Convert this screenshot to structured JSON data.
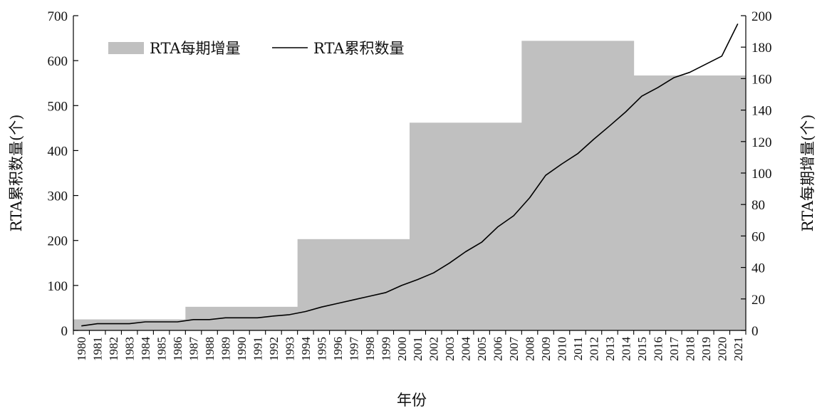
{
  "chart_data": {
    "type": "bar",
    "title": "",
    "xlabel": "年份",
    "ylabel_left": "RTA累积数量(个)",
    "ylabel_right": "RTA每期增量(个)",
    "ylim_left": [
      0,
      700
    ],
    "yticks_left": [
      0,
      100,
      200,
      300,
      400,
      500,
      600,
      700
    ],
    "ylim_right": [
      0,
      200
    ],
    "yticks_right": [
      0,
      20,
      40,
      60,
      80,
      100,
      120,
      140,
      160,
      180,
      200
    ],
    "categories": [
      "1980",
      "1981",
      "1982",
      "1983",
      "1984",
      "1985",
      "1986",
      "1987",
      "1988",
      "1989",
      "1990",
      "1991",
      "1992",
      "1993",
      "1994",
      "1995",
      "1996",
      "1997",
      "1998",
      "1999",
      "2000",
      "2001",
      "2002",
      "2003",
      "2004",
      "2005",
      "2006",
      "2007",
      "2008",
      "2009",
      "2010",
      "2011",
      "2012",
      "2013",
      "2014",
      "2015",
      "2016",
      "2017",
      "2018",
      "2019",
      "2020",
      "2021"
    ],
    "legend_position": "top-left",
    "grid": false,
    "series": [
      {
        "name": "RTA每期增量",
        "type": "step-area",
        "axis": "right",
        "color": "#c0c0c0",
        "periods": [
          {
            "start": "1980",
            "end": "1986",
            "value": 7
          },
          {
            "start": "1987",
            "end": "1993",
            "value": 15
          },
          {
            "start": "1994",
            "end": "2000",
            "value": 58
          },
          {
            "start": "2001",
            "end": "2007",
            "value": 132
          },
          {
            "start": "2008",
            "end": "2014",
            "value": 184
          },
          {
            "start": "2015",
            "end": "2021",
            "value": 162
          }
        ]
      },
      {
        "name": "RTA累积数量",
        "type": "line",
        "axis": "left",
        "color": "#000000",
        "values": [
          10,
          15,
          15,
          15,
          19,
          19,
          19,
          24,
          24,
          28,
          28,
          28,
          32,
          35,
          42,
          52,
          60,
          68,
          76,
          84,
          100,
          113,
          128,
          150,
          175,
          196,
          230,
          255,
          295,
          345,
          370,
          393,
          425,
          455,
          486,
          521,
          540,
          562,
          574,
          592,
          610,
          682
        ]
      }
    ]
  }
}
